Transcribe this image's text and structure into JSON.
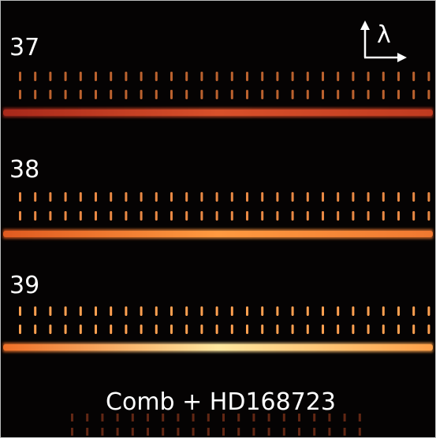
{
  "orders": [
    {
      "label": "37"
    },
    {
      "label": "38"
    },
    {
      "label": "39"
    }
  ],
  "axis_label": "λ",
  "caption": "Comb + HD168723"
}
